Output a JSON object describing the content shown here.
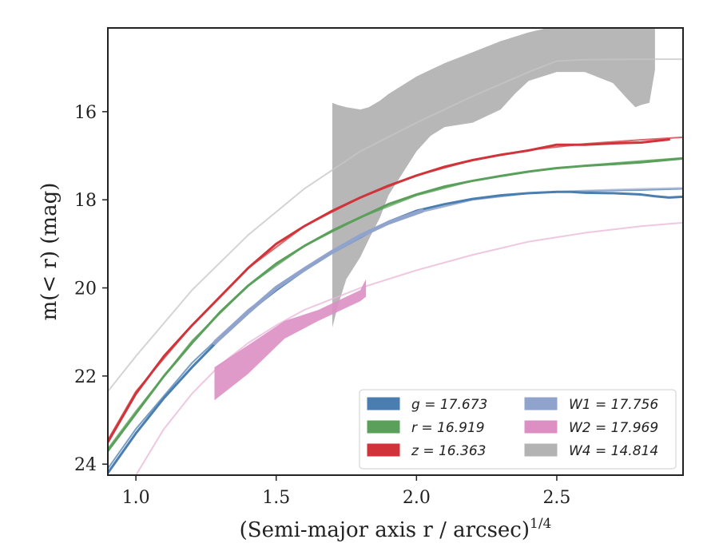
{
  "chart_data": {
    "type": "line",
    "xlabel": "(Semi-major axis r / arcsec)",
    "xlabel_sup": "1/4",
    "ylabel": "m(< r) (mag)",
    "xlim": [
      0.9,
      2.95
    ],
    "ylim": [
      24.25,
      14.1
    ],
    "y_inverted": true,
    "x_ticks": [
      1.0,
      1.5,
      2.0,
      2.5
    ],
    "x_tick_labels": [
      "1.0",
      "1.5",
      "2.0",
      "2.5"
    ],
    "y_ticks": [
      16,
      18,
      20,
      22,
      24
    ],
    "y_tick_labels": [
      "16",
      "18",
      "20",
      "22",
      "24"
    ],
    "legend_position": "lower-right",
    "series": [
      {
        "name": "g",
        "legend": "g = 17.673",
        "color": "#4a7eb0",
        "kind": "measured",
        "x": [
          0.9,
          1.0,
          1.1,
          1.2,
          1.3,
          1.4,
          1.5,
          1.6,
          1.7,
          1.8,
          1.9,
          2.0,
          2.1,
          2.2,
          2.3,
          2.4,
          2.5,
          2.55,
          2.6,
          2.7,
          2.8,
          2.85,
          2.9,
          2.95
        ],
        "y": [
          24.2,
          23.3,
          22.5,
          21.8,
          21.15,
          20.55,
          20.05,
          19.6,
          19.2,
          18.85,
          18.5,
          18.25,
          18.1,
          17.98,
          17.9,
          17.85,
          17.82,
          17.82,
          17.84,
          17.85,
          17.88,
          17.92,
          17.95,
          17.93
        ]
      },
      {
        "name": "g-model",
        "color": "#4a7eb0",
        "kind": "model",
        "x": [
          0.9,
          1.0,
          1.2,
          1.4,
          1.6,
          1.8,
          2.0,
          2.2,
          2.4,
          2.6,
          2.8,
          2.95
        ],
        "y": [
          24.1,
          23.2,
          21.7,
          20.5,
          19.55,
          18.8,
          18.3,
          18.0,
          17.85,
          17.8,
          17.78,
          17.75
        ]
      },
      {
        "name": "r",
        "legend": "r = 16.919",
        "color": "#5aa05a",
        "kind": "measured",
        "x": [
          0.9,
          1.0,
          1.1,
          1.2,
          1.3,
          1.4,
          1.5,
          1.6,
          1.7,
          1.8,
          1.9,
          2.0,
          2.1,
          2.2,
          2.3,
          2.4,
          2.5,
          2.6,
          2.7,
          2.8,
          2.9,
          2.95
        ],
        "y": [
          23.7,
          22.85,
          22.0,
          21.25,
          20.55,
          19.95,
          19.45,
          19.05,
          18.7,
          18.4,
          18.1,
          17.88,
          17.7,
          17.57,
          17.46,
          17.36,
          17.28,
          17.23,
          17.19,
          17.15,
          17.09,
          17.06
        ]
      },
      {
        "name": "r-model",
        "color": "#5aa05a",
        "kind": "model",
        "x": [
          0.9,
          1.0,
          1.2,
          1.4,
          1.6,
          1.8,
          2.0,
          2.2,
          2.4,
          2.6,
          2.8,
          2.95
        ],
        "y": [
          23.65,
          22.8,
          21.2,
          19.95,
          19.05,
          18.4,
          17.9,
          17.57,
          17.36,
          17.22,
          17.12,
          17.05
        ]
      },
      {
        "name": "z",
        "legend": "z = 16.363",
        "color": "#d0343a",
        "kind": "measured",
        "x": [
          0.9,
          1.0,
          1.1,
          1.2,
          1.3,
          1.4,
          1.5,
          1.6,
          1.7,
          1.8,
          1.9,
          2.0,
          2.1,
          2.2,
          2.3,
          2.4,
          2.5,
          2.6,
          2.7,
          2.8,
          2.9
        ],
        "y": [
          23.5,
          22.4,
          21.55,
          20.85,
          20.2,
          19.55,
          19.0,
          18.6,
          18.25,
          17.95,
          17.68,
          17.45,
          17.25,
          17.1,
          16.98,
          16.88,
          16.75,
          16.75,
          16.72,
          16.7,
          16.63
        ]
      },
      {
        "name": "z-model",
        "color": "#d0343a",
        "kind": "model",
        "x": [
          0.9,
          1.0,
          1.2,
          1.4,
          1.6,
          1.8,
          2.0,
          2.2,
          2.4,
          2.6,
          2.8,
          2.95
        ],
        "y": [
          23.45,
          22.35,
          20.85,
          19.55,
          18.6,
          17.95,
          17.45,
          17.1,
          16.87,
          16.73,
          16.64,
          16.58
        ]
      },
      {
        "name": "W1",
        "legend": "W1 = 17.756",
        "color": "#8fa3cc",
        "kind": "measured",
        "x": [
          1.28,
          1.4,
          1.5,
          1.6,
          1.7,
          1.8,
          1.9,
          2.02
        ],
        "y": [
          21.25,
          20.55,
          20.0,
          19.58,
          19.18,
          18.82,
          18.52,
          18.25
        ]
      },
      {
        "name": "W1-model",
        "color": "#aab6d6",
        "kind": "model",
        "x": [
          1.28,
          1.4,
          1.6,
          1.8,
          2.0,
          2.2,
          2.4,
          2.6,
          2.8,
          2.95
        ],
        "y": [
          21.2,
          20.5,
          19.55,
          18.8,
          18.3,
          18.0,
          17.85,
          17.79,
          17.75,
          17.73
        ]
      },
      {
        "name": "W2",
        "legend": "W2 = 17.969",
        "color": "#dd8fc4",
        "kind": "band",
        "x": [
          1.28,
          1.4,
          1.53,
          1.65,
          1.8,
          1.82
        ],
        "y_upper": [
          21.8,
          21.3,
          20.75,
          20.5,
          20.05,
          19.8
        ],
        "y_lower": [
          22.55,
          21.95,
          21.15,
          20.75,
          20.3,
          20.2
        ]
      },
      {
        "name": "W2-model",
        "color": "#e9b4d6",
        "kind": "model",
        "x": [
          1.0,
          1.1,
          1.2,
          1.3,
          1.4,
          1.5,
          1.6,
          1.8,
          2.0,
          2.2,
          2.4,
          2.6,
          2.8,
          2.95
        ],
        "y": [
          24.25,
          23.2,
          22.4,
          21.75,
          21.25,
          20.85,
          20.5,
          20.0,
          19.6,
          19.25,
          18.95,
          18.75,
          18.6,
          18.52
        ]
      },
      {
        "name": "W4",
        "legend": "W4 = 14.814",
        "color": "#b3b3b3",
        "kind": "band",
        "x": [
          1.7,
          1.72,
          1.75,
          1.8,
          1.83,
          1.87,
          1.9,
          1.95,
          2.0,
          2.05,
          2.1,
          2.2,
          2.3,
          2.35,
          2.4,
          2.5,
          2.6,
          2.7,
          2.75,
          2.78,
          2.8,
          2.83,
          2.85
        ],
        "y_upper": [
          15.8,
          15.85,
          15.9,
          15.95,
          15.9,
          15.75,
          15.6,
          15.4,
          15.2,
          15.05,
          14.9,
          14.65,
          14.4,
          14.3,
          14.2,
          14.05,
          14.05,
          14.1,
          14.1,
          14.1,
          14.1,
          14.1,
          14.1
        ],
        "y_lower": [
          20.9,
          20.4,
          19.8,
          19.3,
          18.9,
          18.4,
          17.9,
          17.4,
          16.9,
          16.55,
          16.35,
          16.25,
          15.95,
          15.6,
          15.3,
          15.1,
          15.1,
          15.35,
          15.7,
          15.9,
          15.85,
          15.8,
          15.05
        ]
      },
      {
        "name": "W4-model",
        "color": "#c6c6c6",
        "kind": "model",
        "x": [
          0.9,
          1.0,
          1.2,
          1.4,
          1.6,
          1.8,
          2.0,
          2.2,
          2.4,
          2.5,
          2.6,
          2.8,
          2.95
        ],
        "y": [
          22.35,
          21.55,
          20.05,
          18.8,
          17.75,
          16.9,
          16.25,
          15.65,
          15.1,
          14.85,
          14.82,
          14.81,
          14.81
        ]
      }
    ],
    "legend": [
      {
        "name": "g",
        "value": "17.673",
        "color": "#4a7eb0",
        "column": 0,
        "row": 0
      },
      {
        "name": "r",
        "value": "16.919",
        "color": "#5aa05a",
        "column": 0,
        "row": 1
      },
      {
        "name": "z",
        "value": "16.363",
        "color": "#d0343a",
        "column": 0,
        "row": 2
      },
      {
        "name": "W1",
        "value": "17.756",
        "color": "#8fa3cc",
        "column": 1,
        "row": 0
      },
      {
        "name": "W2",
        "value": "17.969",
        "color": "#dd8fc4",
        "column": 1,
        "row": 1
      },
      {
        "name": "W4",
        "value": "14.814",
        "color": "#b3b3b3",
        "column": 1,
        "row": 2
      }
    ]
  }
}
